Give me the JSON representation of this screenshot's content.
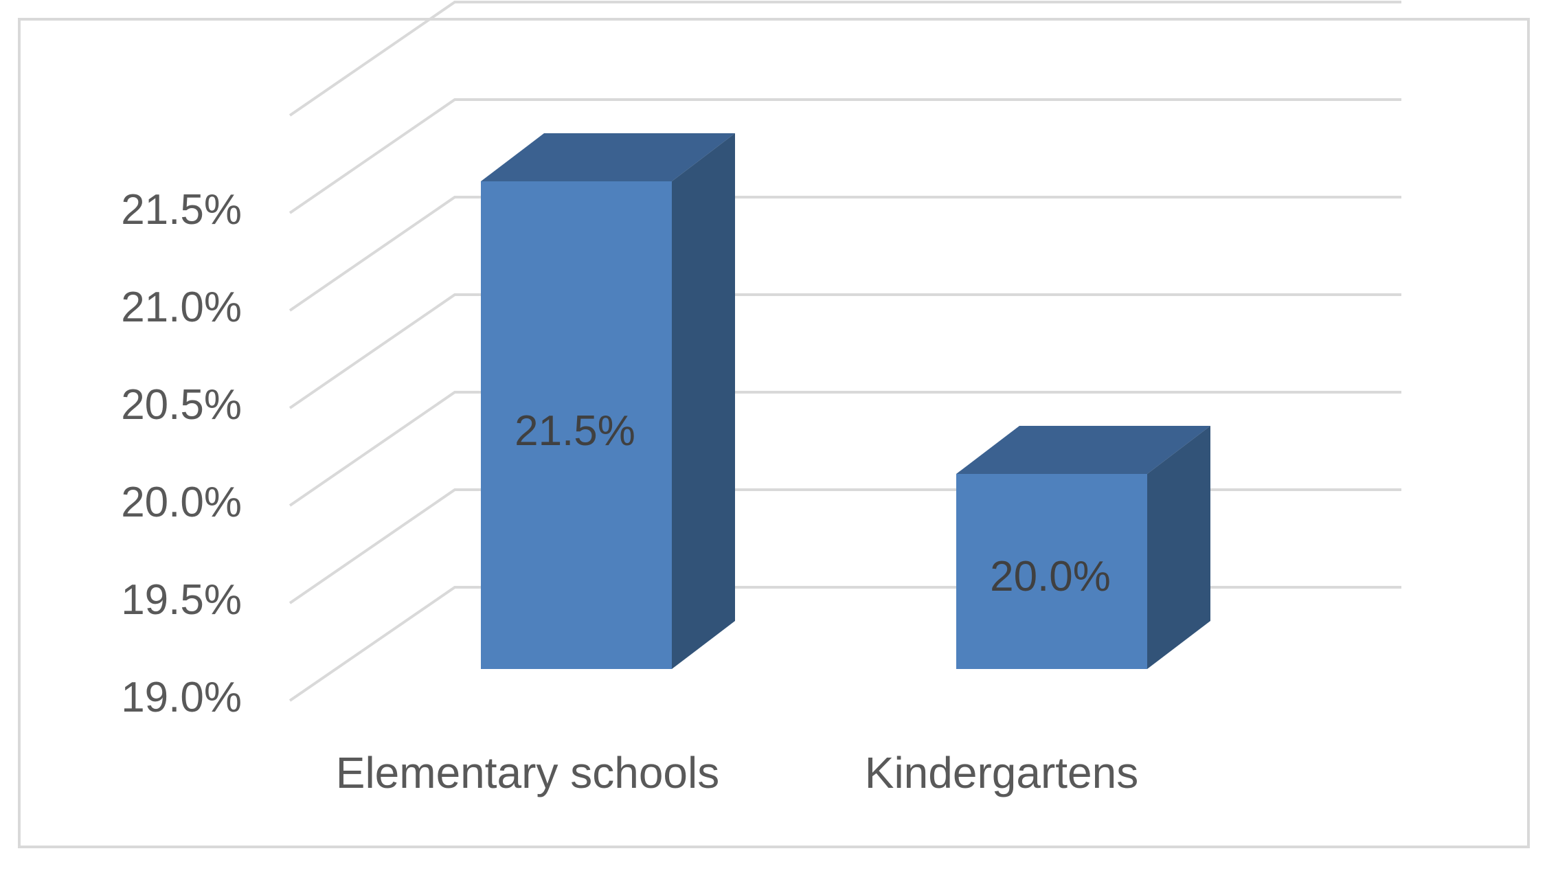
{
  "chart_data": {
    "type": "bar",
    "style": "3d-column",
    "categories": [
      "Elementary schools",
      "Kindergartens"
    ],
    "values": [
      21.5,
      20.0
    ],
    "value_labels": [
      "21.5%",
      "20.0%"
    ],
    "y_tick_labels": [
      "19.0%",
      "19.5%",
      "20.0%",
      "20.5%",
      "21.0%",
      "21.5%"
    ],
    "y_ticks": [
      19.0,
      19.5,
      20.0,
      20.5,
      21.0,
      21.5
    ],
    "ylim": [
      19.0,
      22.0
    ],
    "grid": true,
    "legend": "none"
  },
  "colors": {
    "bar_front": "#4f81bd",
    "bar_top": "#3b6190",
    "bar_side": "#325378",
    "grid": "#d9d9d9",
    "axis_text": "#595959",
    "label_text": "#404040",
    "frame": "#d9d9d9"
  }
}
